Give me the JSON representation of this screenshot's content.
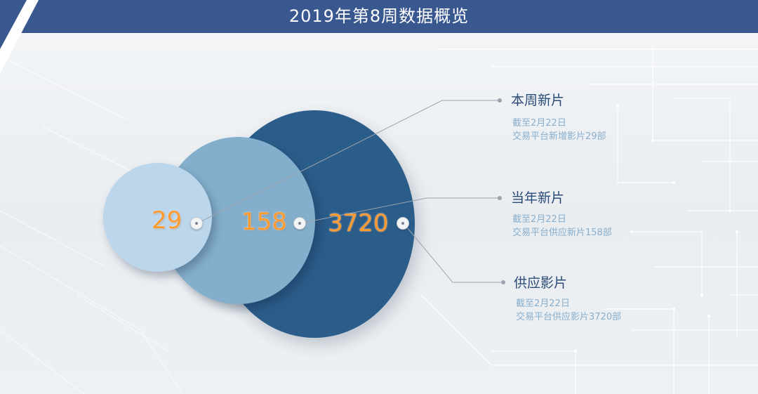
{
  "title": "2019年第8周数据概览",
  "colors": {
    "header": "#3a5890",
    "circle_large": "#2b5d8a",
    "circle_medium": "#84afcc",
    "circle_small": "#bcd6ec",
    "number": "#ff9a2e",
    "heading": "#2a4a78",
    "subtext": "#88aecd"
  },
  "circles": [
    {
      "value": "29",
      "icon": "connector-dot-icon"
    },
    {
      "value": "158",
      "icon": "connector-dot-icon"
    },
    {
      "value": "3720",
      "icon": "connector-dot-icon"
    }
  ],
  "labels": [
    {
      "heading": "本周新片",
      "lines": [
        "截至2月22日",
        "交易平台新增影片29部"
      ]
    },
    {
      "heading": "当年新片",
      "lines": [
        "截至2月22日",
        "交易平台供应新片158部"
      ]
    },
    {
      "heading": "供应影片",
      "lines": [
        "截至2月22日",
        "交易平台供应影片3720部"
      ]
    }
  ]
}
